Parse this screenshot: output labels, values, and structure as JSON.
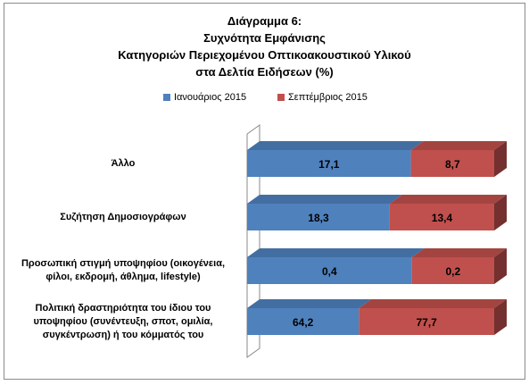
{
  "chart_data": {
    "type": "bar",
    "orientation": "horizontal",
    "stacked": true,
    "style": "3d",
    "title": "Διάγραμμα 6:\nΣυχνότητα Εμφάνισης\nΚατηγοριών Περιεχομένου Οπτικοακουστικού Υλικού\nστα Δελτία Ειδήσεων (%)",
    "categories": [
      "Άλλο",
      "Συζήτηση Δημοσιογράφων",
      "Προσωπική στιγμή υποψηφίου (οικογένεια,\nφίλοι, εκδρομή, άθλημα, lifestyle)",
      "Πολιτική δραστηριότητα του ίδιου του\nυποψηφίου (συνέντευξη, σποτ, ομιλία,\nσυγκέντρωση) ή του κόμματός του"
    ],
    "series": [
      {
        "name": "Ιανουάριος 2015",
        "values": [
          17.1,
          18.3,
          0.4,
          64.2
        ],
        "labels": [
          "17,1",
          "18,3",
          "0,4",
          "64,2"
        ],
        "color": "#4F81BD"
      },
      {
        "name": "Σεπτέμβριος 2015",
        "values": [
          8.7,
          13.4,
          0.2,
          77.7
        ],
        "labels": [
          "8,7",
          "13,4",
          "0,2",
          "77,7"
        ],
        "color": "#C0504D"
      }
    ],
    "legend": "top-center",
    "normalized_to_100": true,
    "grid": false
  }
}
